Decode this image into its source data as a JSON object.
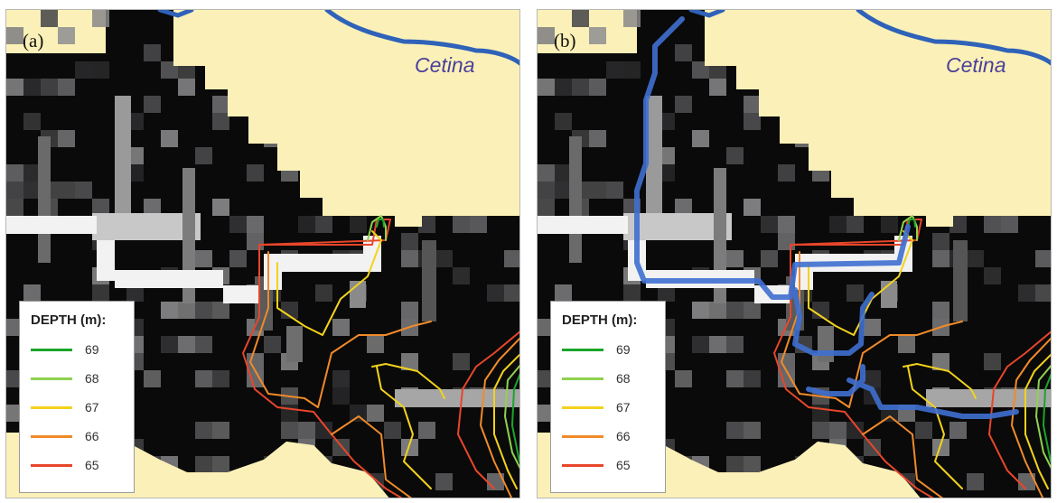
{
  "panels": [
    {
      "id": "a",
      "label": "(a)",
      "river": "Cetina",
      "show_path": false
    },
    {
      "id": "b",
      "label": "(b)",
      "river": "Cetina",
      "show_path": true
    }
  ],
  "legend": {
    "title": "DEPTH (m):",
    "entries": [
      {
        "value": "69",
        "color": "#1aa52a"
      },
      {
        "value": "68",
        "color": "#8fd14f"
      },
      {
        "value": "67",
        "color": "#f2d21b"
      },
      {
        "value": "66",
        "color": "#f08a2a"
      },
      {
        "value": "65",
        "color": "#e8462a"
      }
    ]
  },
  "colors": {
    "land": "#fbf1b8",
    "grid_background": "#0a0a0a",
    "river": "#2f62b8",
    "path": "#3f6fd0"
  }
}
